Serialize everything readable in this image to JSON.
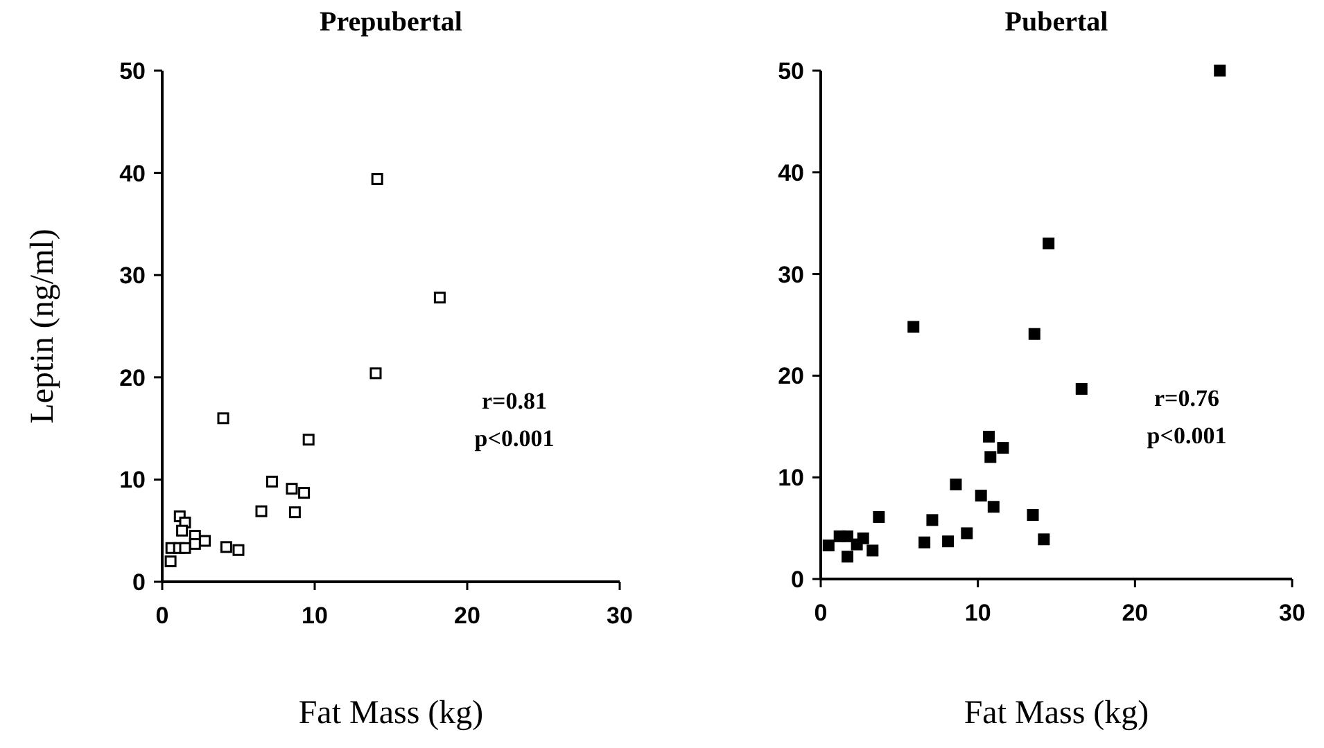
{
  "chart_data": [
    {
      "type": "scatter",
      "title": "Prepubertal",
      "xlabel": "Fat Mass (kg)",
      "ylabel": "Leptin (ng/ml)",
      "xlim": [
        0,
        30
      ],
      "xticks": [
        0,
        10,
        20,
        30
      ],
      "ylim": [
        0,
        50
      ],
      "yticks": [
        0,
        10,
        20,
        30,
        40,
        50
      ],
      "marker": "square",
      "annotations": [
        "r=0.81",
        "p<0.001"
      ],
      "series": [
        {
          "color": "#000000",
          "x": [
            14.1,
            18.2,
            14.0,
            4.0,
            9.6,
            7.2,
            8.5,
            9.3,
            6.5,
            8.7,
            1.15,
            1.5,
            1.3,
            2.15,
            2.8,
            2.15,
            0.6,
            1.1,
            1.5,
            4.2,
            5.0,
            0.55
          ],
          "values": [
            39.4,
            27.8,
            20.4,
            16.0,
            13.9,
            9.8,
            9.1,
            8.7,
            6.9,
            6.8,
            6.4,
            5.8,
            5.0,
            4.5,
            4.0,
            3.7,
            3.3,
            3.3,
            3.3,
            3.4,
            3.1,
            2.0
          ]
        }
      ]
    },
    {
      "type": "scatter",
      "title": "Pubertal",
      "xlabel": "Fat Mass (kg)",
      "xlim": [
        0,
        30
      ],
      "xticks": [
        0,
        10,
        20,
        30
      ],
      "ylim": [
        0,
        50
      ],
      "yticks": [
        0,
        10,
        20,
        30,
        40,
        50
      ],
      "marker": "square",
      "annotations": [
        "r=0.76",
        "p<0.001"
      ],
      "series": [
        {
          "color": "#000000",
          "x": [
            25.4,
            14.5,
            5.9,
            13.6,
            16.6,
            10.7,
            11.6,
            10.8,
            8.6,
            10.2,
            11.0,
            13.5,
            3.7,
            7.1,
            14.2,
            9.3,
            8.1,
            6.6,
            3.3,
            2.7,
            1.2,
            1.7,
            2.3,
            0.5,
            1.7
          ],
          "values": [
            50.0,
            33.0,
            24.8,
            24.1,
            18.7,
            14.0,
            12.9,
            12.0,
            9.3,
            8.2,
            7.1,
            6.3,
            6.1,
            5.8,
            3.9,
            4.5,
            3.7,
            3.6,
            2.8,
            4.0,
            4.2,
            4.2,
            3.4,
            3.3,
            2.2
          ]
        }
      ]
    }
  ]
}
